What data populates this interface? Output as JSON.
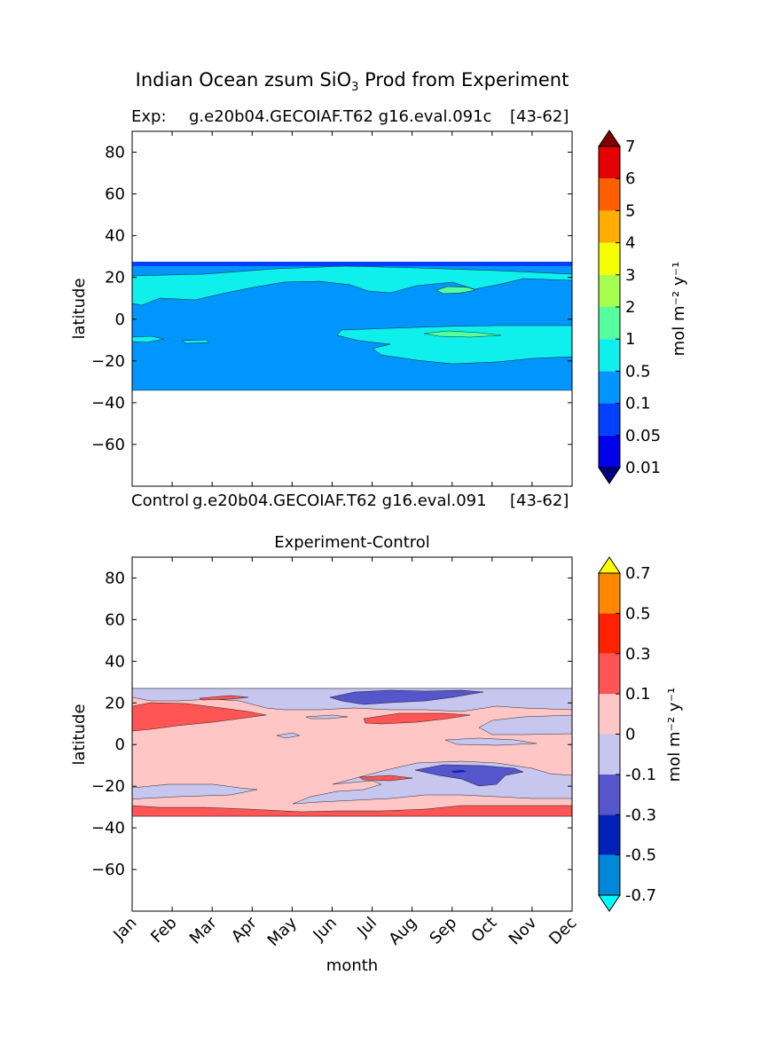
{
  "figure": {
    "suptitle_prefix": "Indian Ocean zsum SiO",
    "suptitle_sub": "3",
    "suptitle_suffix": " Prod from Experiment"
  },
  "chart_data": [
    {
      "type": "contourf",
      "panel": "top",
      "title_left": "Exp:",
      "title_center": "g.e20b04.GECOIAF.T62_g16.eval.091c",
      "title_right": "[43-62]",
      "title_left_display": "Exp:",
      "title_center_display": "g.e20b04.GECOIAF.T62 g16.eval.091c",
      "title_right_display": "[43-62]",
      "xlabel": "",
      "ylabel": "latitude",
      "x_categories": [
        "Jan",
        "Feb",
        "Mar",
        "Apr",
        "May",
        "Jun",
        "Jul",
        "Aug",
        "Sep",
        "Oct",
        "Nov",
        "Dec"
      ],
      "xlim": [
        0,
        11
      ],
      "ylim": [
        -80,
        90
      ],
      "yticks": [
        80,
        60,
        40,
        20,
        0,
        -20,
        -40,
        -60
      ],
      "ytick_labels": [
        "80",
        "60",
        "40",
        "20",
        "0",
        "−20",
        "−40",
        "−60"
      ],
      "data_lat_range": [
        -34,
        27
      ],
      "colorbar": {
        "label": "mol m⁻² y⁻¹",
        "levels": [
          0.01,
          0.05,
          0.1,
          0.5,
          1,
          2,
          3,
          4,
          5,
          6,
          7
        ],
        "level_labels": [
          "0.01",
          "0.05",
          "0.1",
          "0.5",
          "1",
          "2",
          "3",
          "4",
          "5",
          "6",
          "7"
        ],
        "colors": [
          "#00007f",
          "#0000e9",
          "#0040ff",
          "#0095ff",
          "#0ff0ed",
          "#55ff9d",
          "#a6ff4f",
          "#f5ff00",
          "#ffae00",
          "#ff5e00",
          "#e40000",
          "#7f0000"
        ],
        "extend": "both"
      },
      "regions": [
        {
          "name": "band-north",
          "level": "0.05",
          "color": "#0040ff",
          "lat": [
            26,
            27
          ]
        },
        {
          "name": "band-base",
          "level": "0.1",
          "color": "#0095ff",
          "lat": [
            -34,
            26
          ]
        },
        {
          "name": "north-cyan",
          "level": "0.5",
          "color": "#0ff0ed",
          "lat": [
            16,
            24
          ]
        },
        {
          "name": "south-cyan",
          "level": "0.5",
          "color": "#0ff0ed",
          "lat": [
            -31,
            -5
          ]
        },
        {
          "name": "green-blob-aug",
          "level": "1",
          "color": "#55ff9d",
          "month": 8.5,
          "lat": 13
        },
        {
          "name": "green-blob-sep",
          "level": "1",
          "color": "#55ff9d",
          "month": 8.1,
          "lat": -7
        }
      ]
    },
    {
      "type": "contourf",
      "panel": "bottom",
      "title": "Experiment-Control",
      "xlabel": "month",
      "ylabel": "latitude",
      "x_categories": [
        "Jan",
        "Feb",
        "Mar",
        "Apr",
        "May",
        "Jun",
        "Jul",
        "Aug",
        "Sep",
        "Oct",
        "Nov",
        "Dec"
      ],
      "xlim": [
        0,
        11
      ],
      "ylim": [
        -80,
        90
      ],
      "yticks": [
        80,
        60,
        40,
        20,
        0,
        -20,
        -40,
        -60
      ],
      "ytick_labels": [
        "80",
        "60",
        "40",
        "20",
        "0",
        "−20",
        "−40",
        "−60"
      ],
      "data_lat_range": [
        -34,
        27
      ],
      "colorbar": {
        "label": "mol m⁻² y⁻¹",
        "levels": [
          -0.7,
          -0.5,
          -0.3,
          -0.1,
          0,
          0.1,
          0.3,
          0.5,
          0.7
        ],
        "level_labels": [
          "-0.7",
          "-0.5",
          "-0.3",
          "-0.1",
          "0",
          "0.1",
          "0.3",
          "0.5",
          "0.7"
        ],
        "colors": [
          "#00ffff",
          "#0088d8",
          "#0022b8",
          "#5555cc",
          "#c6c6ee",
          "#ffc6c6",
          "#ff5555",
          "#ff2200",
          "#ff8800",
          "#ffff00"
        ],
        "extend": "both"
      },
      "regions": [
        {
          "name": "base-positive",
          "level": "0",
          "color": "#ffc6c6",
          "lat": [
            -34,
            27
          ]
        },
        {
          "name": "north-negative",
          "level": "-0.1",
          "color": "#c6c6ee",
          "lat": [
            14,
            27
          ]
        },
        {
          "name": "south-negative",
          "level": "-0.1",
          "color": "#c6c6ee",
          "lat": [
            -25,
            -19
          ]
        },
        {
          "name": "jul-sep-deep-negative",
          "level": "-0.3",
          "color": "#5555cc",
          "lat": [
            20,
            25
          ]
        },
        {
          "name": "sep-oct-deep-negative",
          "level": "-0.3",
          "color": "#5555cc",
          "lat": [
            -20,
            -10
          ]
        },
        {
          "name": "west-positive",
          "level": "0.1",
          "color": "#ff5555",
          "lat": [
            7,
            20
          ]
        },
        {
          "name": "south-positive-strip",
          "level": "0.1",
          "color": "#ff5555",
          "lat": [
            -34,
            -29
          ]
        }
      ]
    }
  ],
  "control_label": {
    "left": "Control",
    "center": "g.e20b04.GECOIAF.T62_g16.eval.091",
    "center_display": "g.e20b04.GECOIAF.T62 g16.eval.091",
    "right": "[43-62]"
  }
}
